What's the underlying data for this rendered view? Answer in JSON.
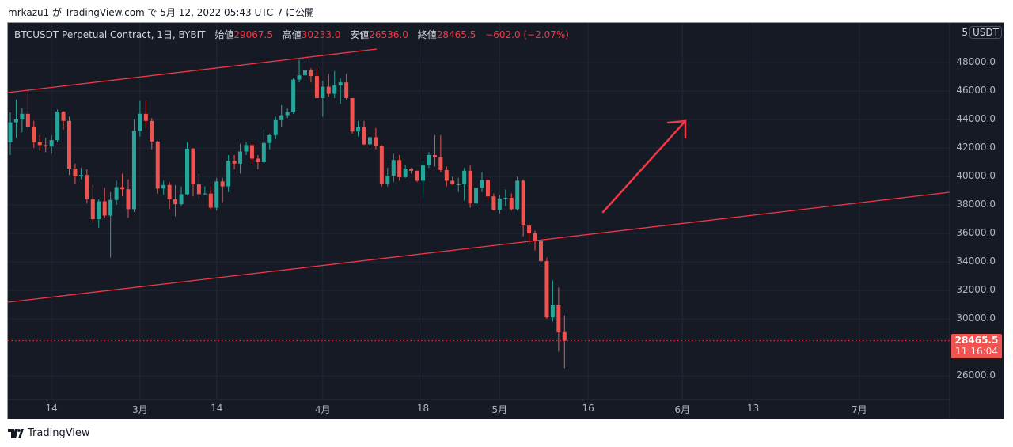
{
  "caption": "mrkazu1 が TradingView.com で 5月 12, 2022 05:43 UTC-7 に公開",
  "legend": {
    "symbol": "BTCUSDT Perpetual Contract, 1日, BYBIT",
    "open_label": "始値",
    "open": "29067.5",
    "high_label": "高値",
    "high": "30233.0",
    "low_label": "安値",
    "low": "26536.0",
    "close_label": "終値",
    "close": "28465.5",
    "change": "−602.0 (−2.07%)"
  },
  "axis": {
    "scale_prefix": "5",
    "currency": "USDT"
  },
  "last_price": {
    "value": "28465.5",
    "countdown": "11:16:04"
  },
  "footer": {
    "brand": "TradingView"
  },
  "colors": {
    "up": "#26a69a",
    "down": "#ef5350",
    "background": "#161a25",
    "drawing": "#f23645"
  },
  "chart_data": {
    "type": "candlestick",
    "title": "BTCUSDT Perpetual Contract, 1日, BYBIT",
    "first_date": "2022-02-07",
    "interval": "1D",
    "ylim": [
      24500,
      50500
    ],
    "y_ticks": [
      "48000.0",
      "46000.0",
      "44000.0",
      "42000.0",
      "40000.0",
      "38000.0",
      "36000.0",
      "34000.0",
      "32000.0",
      "30000.0",
      "26000.0"
    ],
    "x_ticks": [
      {
        "label": "14",
        "day": 7
      },
      {
        "label": "3月",
        "day": 22
      },
      {
        "label": "14",
        "day": 35
      },
      {
        "label": "4月",
        "day": 53
      },
      {
        "label": "18",
        "day": 70
      },
      {
        "label": "5月",
        "day": 83
      },
      {
        "label": "16",
        "day": 98
      },
      {
        "label": "6月",
        "day": 114
      },
      {
        "label": "13",
        "day": 126
      },
      {
        "label": "7月",
        "day": 144
      }
    ],
    "ohlc": [
      [
        42400,
        44500,
        41500,
        43800
      ],
      [
        43800,
        45400,
        42700,
        44000
      ],
      [
        44000,
        44800,
        43100,
        44400
      ],
      [
        44400,
        45800,
        43200,
        43500
      ],
      [
        43500,
        43900,
        42000,
        42400
      ],
      [
        42400,
        42900,
        41800,
        42200
      ],
      [
        42200,
        42700,
        41700,
        42100
      ],
      [
        42100,
        42900,
        41600,
        42550
      ],
      [
        42550,
        44700,
        42400,
        44550
      ],
      [
        44550,
        44600,
        43300,
        43900
      ],
      [
        43900,
        44200,
        40100,
        40550
      ],
      [
        40550,
        40900,
        39500,
        40000
      ],
      [
        40000,
        40600,
        39800,
        40100
      ],
      [
        40100,
        40500,
        38100,
        38400
      ],
      [
        38400,
        39400,
        36800,
        37000
      ],
      [
        37000,
        38400,
        36400,
        38250
      ],
      [
        38250,
        39200,
        37100,
        37250
      ],
      [
        37250,
        38900,
        34300,
        38350
      ],
      [
        38350,
        39700,
        38000,
        39250
      ],
      [
        39250,
        40200,
        38600,
        39100
      ],
      [
        39100,
        39800,
        37100,
        37700
      ],
      [
        37700,
        44000,
        37500,
        43200
      ],
      [
        43200,
        45300,
        42800,
        44400
      ],
      [
        44400,
        45300,
        43400,
        43900
      ],
      [
        43900,
        44100,
        41900,
        42450
      ],
      [
        42450,
        42500,
        38800,
        39150
      ],
      [
        39150,
        39700,
        38700,
        39400
      ],
      [
        39400,
        39600,
        37700,
        38400
      ],
      [
        38400,
        39400,
        37200,
        38050
      ],
      [
        38050,
        39300,
        37900,
        38750
      ],
      [
        38750,
        42400,
        38700,
        41950
      ],
      [
        41950,
        42000,
        38600,
        39450
      ],
      [
        39450,
        40200,
        38300,
        38750
      ],
      [
        38750,
        39300,
        38700,
        38800
      ],
      [
        38800,
        39300,
        37700,
        37800
      ],
      [
        37800,
        39900,
        37600,
        39650
      ],
      [
        39650,
        39900,
        38200,
        39300
      ],
      [
        39300,
        41500,
        38900,
        41100
      ],
      [
        41100,
        41500,
        40500,
        40900
      ],
      [
        40900,
        42300,
        40200,
        41750
      ],
      [
        41750,
        42400,
        41500,
        42200
      ],
      [
        42200,
        42300,
        40900,
        41250
      ],
      [
        41250,
        41500,
        40500,
        41000
      ],
      [
        41000,
        43300,
        40900,
        42350
      ],
      [
        42350,
        43000,
        41900,
        42900
      ],
      [
        42900,
        44200,
        42600,
        43950
      ],
      [
        43950,
        45000,
        43500,
        44300
      ],
      [
        44300,
        44800,
        44100,
        44500
      ],
      [
        44500,
        46900,
        44400,
        46800
      ],
      [
        46800,
        48200,
        46600,
        47100
      ],
      [
        47100,
        48100,
        46900,
        47450
      ],
      [
        47450,
        47600,
        46600,
        47050
      ],
      [
        47050,
        47600,
        45500,
        45500
      ],
      [
        45500,
        46700,
        44200,
        46300
      ],
      [
        46300,
        47200,
        45600,
        45800
      ],
      [
        45800,
        47400,
        45500,
        46400
      ],
      [
        46400,
        46900,
        45100,
        46600
      ],
      [
        46600,
        47200,
        45400,
        45500
      ],
      [
        45500,
        45500,
        43000,
        43150
      ],
      [
        43150,
        43900,
        42800,
        43450
      ],
      [
        43450,
        43900,
        42200,
        42250
      ],
      [
        42250,
        42800,
        42100,
        42750
      ],
      [
        42750,
        43400,
        41900,
        42150
      ],
      [
        42150,
        42200,
        39300,
        39500
      ],
      [
        39500,
        40600,
        39300,
        40050
      ],
      [
        40050,
        41600,
        39600,
        41150
      ],
      [
        41150,
        41500,
        39700,
        39950
      ],
      [
        39950,
        40800,
        39900,
        40550
      ],
      [
        40550,
        40600,
        40200,
        40400
      ],
      [
        40400,
        40400,
        39600,
        39700
      ],
      [
        39700,
        41100,
        38600,
        40800
      ],
      [
        40800,
        41700,
        40600,
        41500
      ],
      [
        41500,
        42900,
        40700,
        41350
      ],
      [
        41350,
        42900,
        40300,
        40450
      ],
      [
        40450,
        40700,
        39300,
        39700
      ],
      [
        39700,
        40000,
        39400,
        39450
      ],
      [
        39450,
        39900,
        38900,
        39450
      ],
      [
        39450,
        40600,
        38300,
        40400
      ],
      [
        40400,
        40800,
        37800,
        38100
      ],
      [
        38100,
        39500,
        37900,
        39200
      ],
      [
        39200,
        40300,
        38900,
        39750
      ],
      [
        39750,
        39800,
        38300,
        38600
      ],
      [
        38600,
        38800,
        37600,
        37650
      ],
      [
        37650,
        38700,
        37400,
        38450
      ],
      [
        38450,
        39100,
        37900,
        38500
      ],
      [
        38500,
        38800,
        37600,
        37700
      ],
      [
        37700,
        40000,
        37600,
        39700
      ],
      [
        39700,
        39800,
        35800,
        36550
      ],
      [
        36550,
        36700,
        35300,
        36000
      ],
      [
        36000,
        36200,
        34800,
        35450
      ],
      [
        35450,
        35500,
        33700,
        34050
      ],
      [
        34050,
        34300,
        30000,
        30100
      ],
      [
        30100,
        32700,
        29800,
        31000
      ],
      [
        31000,
        32200,
        27700,
        29050
      ],
      [
        29067.5,
        30233,
        26536,
        28465.5
      ]
    ]
  }
}
